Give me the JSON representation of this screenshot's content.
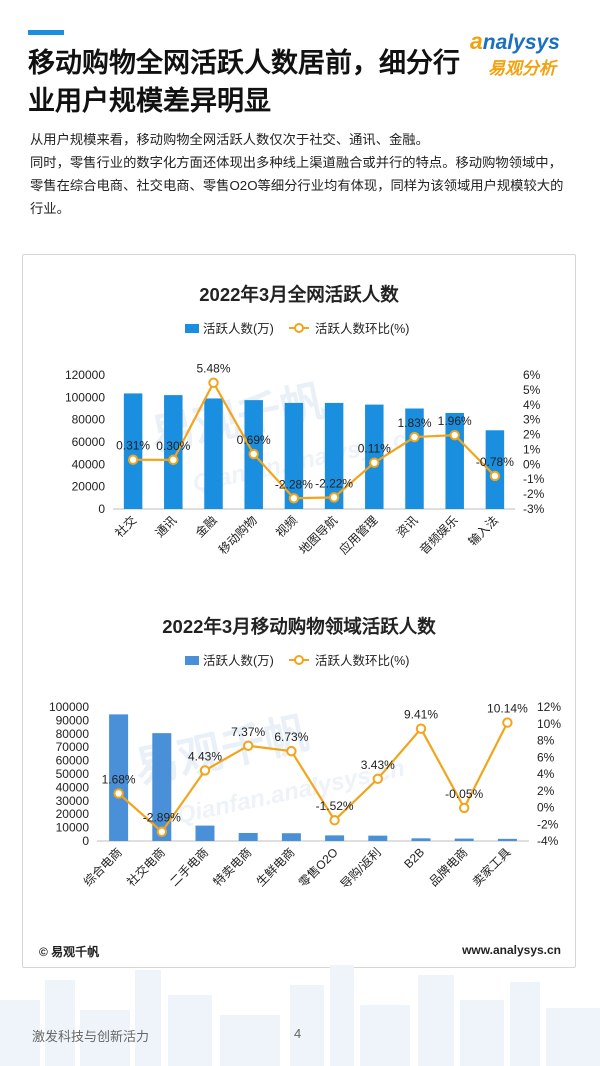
{
  "page": {
    "title": "移动购物全网活跃人数居前，细分行业用户规模差异明显",
    "logo_en": "nalysys",
    "logo_en_a": "a",
    "logo_cn": "易观分析",
    "paragraph_lines": [
      "从用户规模来看，移动购物全网活跃人数仅次于社交、通讯、金融。",
      "同时，零售行业的数字化方面还体现出多种线上渠道融合或并行的特点。移动购物领域中，零售在综合电商、社交电商、零售O2O等细分行业均有体现，同样为该领域用户规模较大的行业。"
    ],
    "footer_left": "© 易观千帆",
    "footer_right": "www.analysys.cn",
    "bottom_text": "激发科技与创新活力",
    "page_number": "4",
    "watermark_cn": "易观千帆",
    "watermark_en": "Qianfan.analysys.cn",
    "colors": {
      "accent_blue": "#1a8fe0",
      "bar_blue_1": "#1a8fe0",
      "bar_blue_2": "#4a90d9",
      "line_orange": "#f2a51c",
      "brand_orange": "#f2a20e"
    }
  },
  "chart_data": [
    {
      "type": "bar",
      "title": "2022年3月全网活跃人数",
      "categories": [
        "社交",
        "通讯",
        "金融",
        "移动购物",
        "视频",
        "地图导航",
        "应用管理",
        "资讯",
        "音频娱乐",
        "输入法"
      ],
      "series": [
        {
          "name": "活跃人数(万)",
          "type": "bar",
          "axis": "left",
          "values": [
            103500,
            102000,
            99000,
            97500,
            95000,
            95000,
            93500,
            90000,
            86000,
            70500
          ]
        },
        {
          "name": "活跃人数环比(%)",
          "type": "line",
          "axis": "right",
          "values": [
            0.31,
            0.3,
            5.48,
            0.69,
            -2.28,
            -2.22,
            0.11,
            1.83,
            1.96,
            -0.78
          ],
          "labels": [
            "0.31%",
            "0.30%",
            "5.48%",
            "0.69%",
            "-2.28%",
            "-2.22%",
            "0.11%",
            "1.83%",
            "1.96%",
            "-0.78%"
          ]
        }
      ],
      "left_axis": {
        "min": 0,
        "max": 120000,
        "step": 20000,
        "ticks": [
          "120000",
          "100000",
          "80000",
          "60000",
          "40000",
          "20000",
          "0"
        ]
      },
      "right_axis": {
        "min": -3,
        "max": 6,
        "step": 1,
        "ticks": [
          "6%",
          "5%",
          "4%",
          "3%",
          "2%",
          "1%",
          "0%",
          "-1%",
          "-2%",
          "-3%"
        ]
      },
      "legend": "top-center",
      "grid": false
    },
    {
      "type": "bar",
      "title": "2022年3月移动购物领域活跃人数",
      "categories": [
        "综合电商",
        "社交电商",
        "二手电商",
        "特卖电商",
        "生鲜电商",
        "零售O2O",
        "导购/返利",
        "B2B",
        "品牌电商",
        "卖家工具"
      ],
      "series": [
        {
          "name": "活跃人数(万)",
          "type": "bar",
          "axis": "left",
          "values": [
            94500,
            80500,
            11500,
            6000,
            5800,
            4200,
            4000,
            2000,
            1800,
            1600
          ]
        },
        {
          "name": "活跃人数环比(%)",
          "type": "line",
          "axis": "right",
          "values": [
            1.68,
            -2.89,
            4.43,
            7.37,
            6.73,
            -1.52,
            3.43,
            9.41,
            -0.05,
            10.14
          ],
          "labels": [
            "1.68%",
            "-2.89%",
            "4.43%",
            "7.37%",
            "6.73%",
            "-1.52%",
            "3.43%",
            "9.41%",
            "-0.05%",
            "10.14%"
          ]
        }
      ],
      "left_axis": {
        "min": 0,
        "max": 100000,
        "step": 10000,
        "ticks": [
          "100000",
          "90000",
          "80000",
          "70000",
          "60000",
          "50000",
          "40000",
          "30000",
          "20000",
          "10000",
          "0"
        ]
      },
      "right_axis": {
        "min": -4,
        "max": 12,
        "step": 2,
        "ticks": [
          "12%",
          "10%",
          "8%",
          "6%",
          "4%",
          "2%",
          "0%",
          "-2%",
          "-4%"
        ]
      },
      "legend": "top-center",
      "grid": false
    }
  ]
}
